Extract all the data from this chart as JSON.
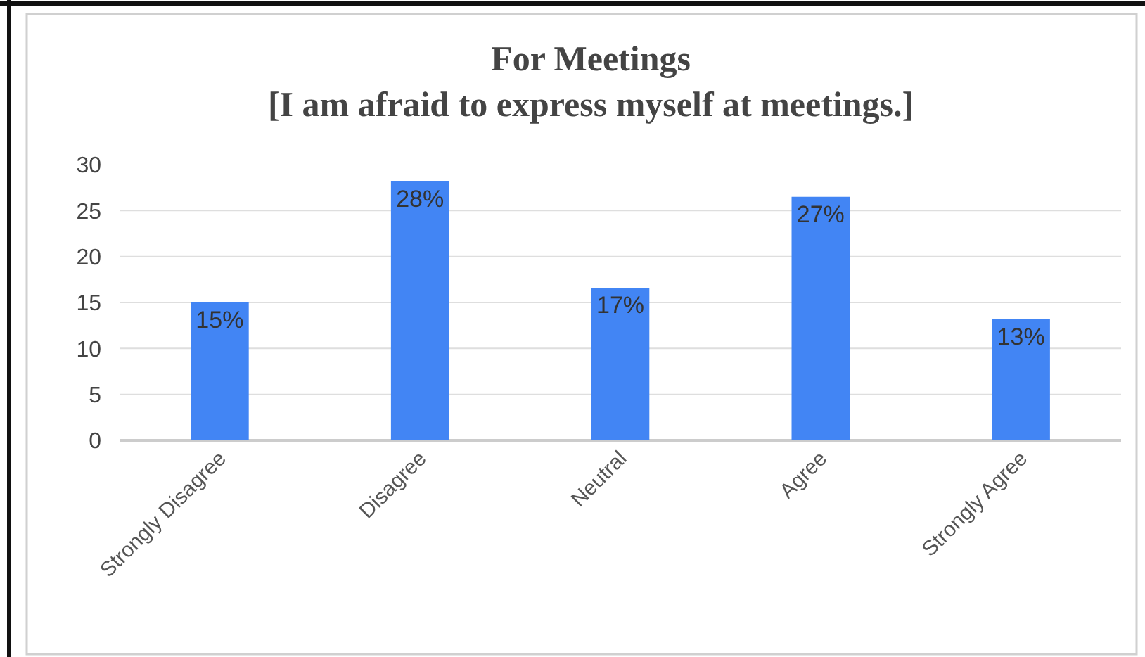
{
  "chart_data": {
    "type": "bar",
    "title": "For Meetings\n[I am afraid to express myself at meetings.]",
    "categories": [
      "Strongly Disagree",
      "Disagree",
      "Neutral",
      "Agree",
      "Strongly Agree"
    ],
    "values": [
      15,
      28.2,
      16.6,
      26.5,
      13.2
    ],
    "value_labels": [
      "15%",
      "28%",
      "17%",
      "27%",
      "13%"
    ],
    "color": "#4285f4",
    "ylim": [
      0,
      30
    ],
    "yticks": [
      0,
      5,
      10,
      15,
      20,
      25,
      30
    ],
    "grid": "y"
  }
}
